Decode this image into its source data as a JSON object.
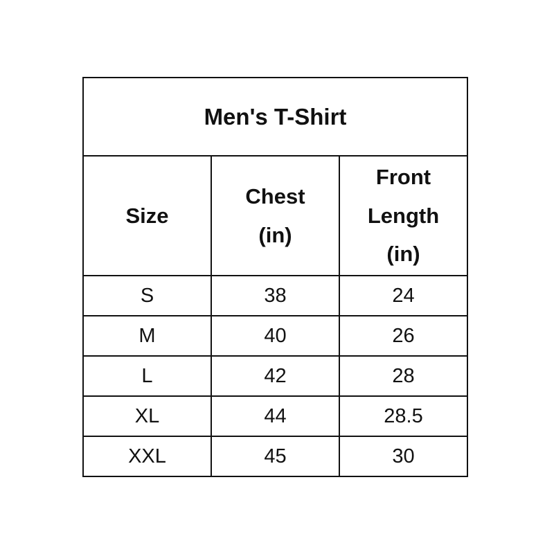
{
  "title": "Men's T-Shirt",
  "headers": [
    "Size",
    "Chest\n(in)",
    "Front\nLength\n(in)"
  ],
  "rows": [
    [
      "S",
      "38",
      "24"
    ],
    [
      "M",
      "40",
      "26"
    ],
    [
      "L",
      "42",
      "28"
    ],
    [
      "XL",
      "44",
      "28.5"
    ],
    [
      "XXL",
      "45",
      "30"
    ]
  ]
}
